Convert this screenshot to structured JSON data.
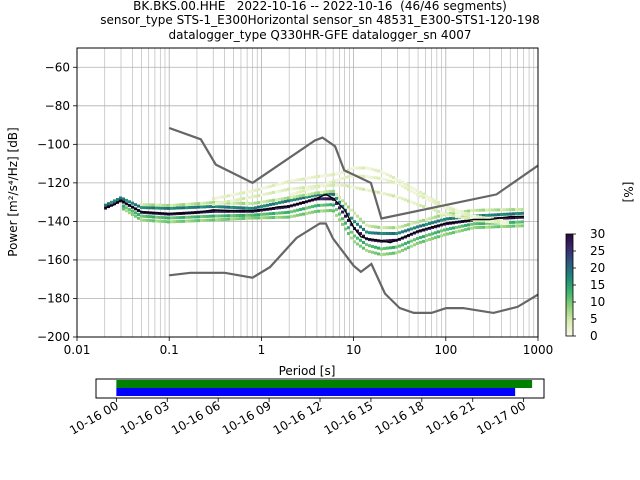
{
  "title": {
    "line1": "BK.BKS.00.HHE   2022-10-16 -- 2022-10-16  (46/46 segments)",
    "line2": "sensor_type STS-1_E300Horizontal sensor_sn 48531_E300-STS1-120-198",
    "line3": "datalogger_type Q330HR-GFE datalogger_sn 4007"
  },
  "chart_data": {
    "type": "heatmap",
    "xlabel": "Period [s]",
    "ylabel": "Power [m²/s⁴/Hz] [dB]",
    "x_scale": "log",
    "xlim": [
      0.01,
      1000
    ],
    "ylim": [
      -200,
      -50
    ],
    "x_ticks": [
      {
        "value": 0.01,
        "label": "0.01"
      },
      {
        "value": 0.1,
        "label": "0.1"
      },
      {
        "value": 1,
        "label": "1"
      },
      {
        "value": 10,
        "label": "10"
      },
      {
        "value": 100,
        "label": "100"
      },
      {
        "value": 1000,
        "label": "1000"
      }
    ],
    "y_ticks": [
      {
        "value": -60,
        "label": "−60"
      },
      {
        "value": -80,
        "label": "−80"
      },
      {
        "value": -100,
        "label": "−100"
      },
      {
        "value": -120,
        "label": "−120"
      },
      {
        "value": -140,
        "label": "−140"
      },
      {
        "value": -160,
        "label": "−160"
      },
      {
        "value": -180,
        "label": "−180"
      },
      {
        "value": -200,
        "label": "−200"
      }
    ],
    "grid": true,
    "colorbar": {
      "label": "[%]",
      "min": 0,
      "max": 30,
      "ticks": [
        {
          "value": 0,
          "label": "0"
        },
        {
          "value": 5,
          "label": "5"
        },
        {
          "value": 10,
          "label": "10"
        },
        {
          "value": 15,
          "label": "15"
        },
        {
          "value": 20,
          "label": "20"
        },
        {
          "value": 25,
          "label": "25"
        },
        {
          "value": 30,
          "label": "30"
        }
      ],
      "colormap": [
        "#f7f8e8",
        "#d9ecb0",
        "#8fd07a",
        "#3fb46d",
        "#1f8a78",
        "#2c5a80",
        "#3a2a6e",
        "#2a0a3a"
      ]
    },
    "noise_models": {
      "color": "#666666",
      "high": {
        "periods": [
          0.1,
          0.22,
          0.32,
          0.8,
          3.8,
          4.6,
          6.3,
          7.9,
          15.4,
          20,
          354.8,
          1000
        ],
        "values": [
          -91.5,
          -97.4,
          -110.5,
          -120,
          -98,
          -96.5,
          -101,
          -113.5,
          -120,
          -138.5,
          -126,
          -111
        ]
      },
      "low": {
        "periods": [
          0.1,
          0.17,
          0.4,
          0.8,
          1.24,
          2.4,
          4.3,
          5,
          6,
          10,
          12,
          15.6,
          21.9,
          31.6,
          45,
          70,
          101,
          154,
          328,
          600,
          1000
        ],
        "values": [
          -168,
          -166.7,
          -166.7,
          -169.2,
          -163.7,
          -148.6,
          -141.1,
          -141.1,
          -149,
          -163,
          -166.2,
          -162.1,
          -177.5,
          -185,
          -187.5,
          -187.5,
          -185,
          -185,
          -187.5,
          -184.4,
          -178
        ]
      }
    },
    "mode": {
      "color": "#000000",
      "periods": [
        0.02,
        0.025,
        0.03,
        0.035,
        0.05,
        0.1,
        0.2,
        0.3,
        0.5,
        0.8,
        1.2,
        1.5,
        2,
        3,
        4,
        5,
        6,
        8,
        10,
        12,
        14,
        20,
        25,
        30,
        40,
        50,
        70,
        100,
        150,
        200,
        300,
        500,
        700
      ],
      "values": [
        -133,
        -131.5,
        -129,
        -131,
        -135,
        -136,
        -135.5,
        -134,
        -134.5,
        -134.5,
        -133.5,
        -132.5,
        -132,
        -130,
        -128,
        -126,
        -128,
        -134,
        -143,
        -148,
        -149,
        -150,
        -151,
        -149.5,
        -147,
        -145,
        -143,
        -141,
        -140,
        -139,
        -139,
        -137.5,
        -137.5
      ]
    },
    "density": [
      {
        "p": [
          0.02,
          0.03,
          0.05,
          0.1,
          0.3,
          0.8,
          2,
          4,
          6,
          10,
          14,
          20,
          30,
          50,
          100,
          200,
          700
        ],
        "v": [
          -133,
          -129,
          -135,
          -136,
          -134.5,
          -134.5,
          -132,
          -128,
          -128,
          -143,
          -149,
          -150,
          -149.5,
          -145,
          -141,
          -139,
          -137.5
        ],
        "pct": 28
      },
      {
        "p": [
          0.02,
          0.03,
          0.05,
          0.1,
          0.3,
          0.8,
          2,
          4,
          6,
          10,
          14,
          20,
          30,
          50,
          100,
          200,
          700
        ],
        "v": [
          -131.5,
          -127.5,
          -132.5,
          -133,
          -132,
          -133,
          -129,
          -126,
          -125.5,
          -139.5,
          -145.5,
          -146,
          -146,
          -142.5,
          -138.5,
          -137,
          -135.5
        ],
        "pct": 18
      },
      {
        "p": [
          0.03,
          0.05,
          0.1,
          0.3,
          0.8,
          2,
          4,
          6,
          10,
          14,
          20,
          30,
          50,
          100,
          200,
          700
        ],
        "v": [
          -131,
          -137,
          -138,
          -137,
          -136.5,
          -135,
          -131.5,
          -131,
          -147,
          -152,
          -154,
          -153,
          -148.5,
          -144,
          -141,
          -140
        ],
        "pct": 12
      },
      {
        "p": [
          0.03,
          0.05,
          0.1,
          0.3,
          0.8,
          2,
          4,
          6,
          10,
          14,
          20,
          30,
          50,
          100,
          200,
          700
        ],
        "v": [
          -132.5,
          -139,
          -140,
          -139,
          -138,
          -137.5,
          -134.5,
          -134,
          -150,
          -155,
          -157,
          -156,
          -151,
          -146.5,
          -143,
          -142
        ],
        "pct": 9
      },
      {
        "p": [
          0.05,
          0.1,
          0.3,
          0.8,
          2,
          4,
          6,
          10,
          14,
          20,
          30,
          50,
          100,
          200,
          700
        ],
        "v": [
          -131,
          -131.5,
          -130,
          -130.5,
          -127.5,
          -125,
          -124,
          -135,
          -142,
          -143,
          -143,
          -140,
          -136,
          -134,
          -133.5
        ],
        "pct": 6
      },
      {
        "p": [
          0.3,
          0.8,
          2,
          4,
          6,
          8,
          10,
          14,
          20,
          30,
          50,
          100,
          200,
          500
        ],
        "v": [
          -131,
          -127,
          -123,
          -121.5,
          -121,
          -121,
          -122,
          -123.5,
          -125,
          -127,
          -131,
          -136,
          -139,
          -141
        ],
        "pct": 3
      },
      {
        "p": [
          0.3,
          0.8,
          2,
          4,
          6,
          8,
          10,
          14,
          20,
          30,
          50,
          100,
          200,
          500
        ],
        "v": [
          -128,
          -124,
          -119,
          -116.5,
          -115.5,
          -114,
          -112,
          -112,
          -114,
          -118,
          -124,
          -132,
          -137,
          -140
        ],
        "pct": 2
      },
      {
        "p": [
          2,
          4,
          6,
          8,
          10,
          14,
          20,
          30,
          50,
          100,
          200,
          500
        ],
        "v": [
          -126,
          -122,
          -119,
          -117,
          -116,
          -116.5,
          -117.5,
          -120,
          -126,
          -133,
          -138,
          -141
        ],
        "pct": 2
      }
    ]
  },
  "timeline": {
    "tick_labels": [
      "10-16 00",
      "10-16 03",
      "10-16 06",
      "10-16 09",
      "10-16 12",
      "10-16 15",
      "10-16 18",
      "10-16 21",
      "10-17 00"
    ],
    "tick_hours": [
      0,
      3,
      6,
      9,
      12,
      15,
      18,
      21,
      24
    ],
    "range_hours": [
      -1.2,
      25.2
    ],
    "bars": [
      {
        "start_hour": 0,
        "end_hour": 24.5,
        "color": "#008000"
      },
      {
        "start_hour": 0,
        "end_hour": 23.5,
        "color": "#0000ff"
      }
    ]
  }
}
